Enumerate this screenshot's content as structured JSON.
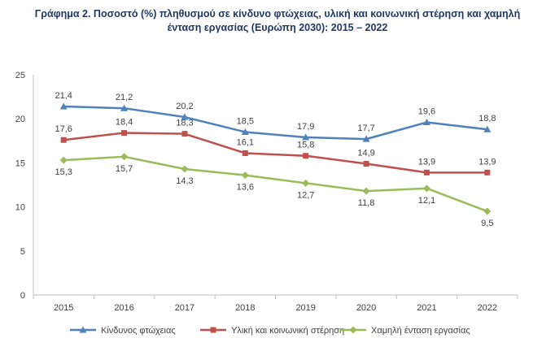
{
  "chart_data": {
    "type": "line",
    "title_line1": "Γράφημα 2. Ποσοστό (%) πληθυσμού σε κίνδυνο φτώχειας, υλική και κοινωνική στέρηση και χαμηλή",
    "title_line2": "ένταση εργασίας (Ευρώπη 2030): 2015 – 2022",
    "categories": [
      "2015",
      "2016",
      "2017",
      "2018",
      "2019",
      "2020",
      "2021",
      "2022"
    ],
    "ylim": [
      0,
      25
    ],
    "yticks": [
      0,
      5,
      10,
      15,
      20,
      25
    ],
    "grid": false,
    "legend_position": "bottom",
    "series": [
      {
        "name": "Κίνδυνος φτώχειας",
        "color": "#4f81bd",
        "marker": "triangle",
        "values": [
          21.4,
          21.2,
          20.2,
          18.5,
          17.9,
          17.7,
          19.6,
          18.8
        ],
        "labels": [
          "21,4",
          "21,2",
          "20,2",
          "18,5",
          "17,9",
          "17,7",
          "19,6",
          "18,8"
        ]
      },
      {
        "name": "Υλική και κοινωνική στέρηση",
        "color": "#c0504d",
        "marker": "square",
        "values": [
          17.6,
          18.4,
          18.3,
          16.1,
          15.8,
          14.9,
          13.9,
          13.9
        ],
        "labels": [
          "17,6",
          "18,4",
          "18,3",
          "16,1",
          "15,8",
          "14,9",
          "13,9",
          "13,9"
        ]
      },
      {
        "name": "Χαμηλή ένταση εργασίας",
        "color": "#9bbb59",
        "marker": "diamond",
        "values": [
          15.3,
          15.7,
          14.3,
          13.6,
          12.7,
          11.8,
          12.1,
          9.5
        ],
        "labels": [
          "15,3",
          "15,7",
          "14,3",
          "13,6",
          "12,7",
          "11,8",
          "12,1",
          "9,5"
        ]
      }
    ]
  }
}
